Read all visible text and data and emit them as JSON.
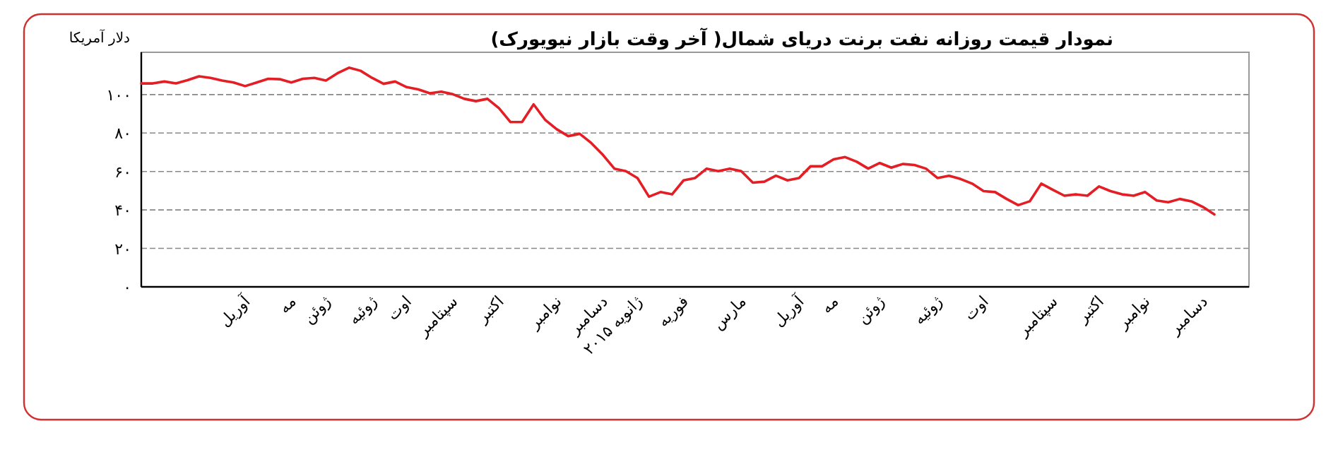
{
  "chart_data": {
    "type": "line",
    "title": "نمودار قیمت روزانه نفت برنت دریای شمال( آخر وقت بازار نیویورک)",
    "ylabel": "دلار آمریکا",
    "categories": [
      null,
      null,
      null,
      null,
      null,
      null,
      null,
      null,
      null,
      "آوریل",
      null,
      null,
      null,
      "مه",
      null,
      null,
      "ژوئن",
      null,
      null,
      null,
      "ژوئیه",
      null,
      null,
      "اوت",
      null,
      null,
      null,
      "سپتامبر",
      null,
      null,
      null,
      "اکتبر",
      null,
      null,
      null,
      null,
      "نوامبر",
      null,
      null,
      null,
      "دسامبر",
      null,
      null,
      "ژانویه ۲۰۱۵",
      null,
      null,
      null,
      "فوریه",
      null,
      null,
      null,
      null,
      "مارس",
      null,
      null,
      null,
      null,
      "آوریل",
      null,
      null,
      "مه",
      null,
      null,
      null,
      "ژوئن",
      null,
      null,
      null,
      null,
      "ژوئیه",
      null,
      null,
      null,
      "اوت",
      null,
      null,
      null,
      null,
      null,
      "سپتامبر",
      null,
      null,
      null,
      "اکتبر",
      null,
      null,
      null,
      "نوامبر",
      null,
      null,
      null,
      null,
      "دسامبر",
      null
    ],
    "series": [
      {
        "color": "#e31e24",
        "values": [
          105.8,
          105.8,
          106.8,
          105.8,
          107.5,
          109.5,
          108.7,
          107.3,
          106.3,
          104.4,
          106.3,
          108.2,
          108,
          106.3,
          108.2,
          108.7,
          107.3,
          111.1,
          114,
          112.4,
          108.7,
          105.6,
          106.8,
          103.9,
          102.7,
          100.7,
          101.5,
          100.2,
          97.8,
          96.6,
          97.8,
          92.9,
          85.7,
          85.7,
          94.9,
          86.9,
          82,
          78.4,
          79.6,
          74.8,
          68.7,
          61.5,
          60.2,
          56.6,
          46.9,
          49.3,
          48.1,
          55.4,
          56.6,
          61.5,
          60.2,
          61.5,
          60.2,
          54.2,
          54.7,
          57.8,
          55.4,
          56.6,
          62.7,
          62.7,
          66.3,
          67.5,
          65.1,
          61.5,
          64.4,
          62,
          63.9,
          63.4,
          61.5,
          56.6,
          57.8,
          56.1,
          53.7,
          49.8,
          49.3,
          45.7,
          42.5,
          44.5,
          53.7,
          50.5,
          47.4,
          48.1,
          47.4,
          52.2,
          49.8,
          48.1,
          47.4,
          49.3,
          44.9,
          44,
          45.7,
          44.5,
          41.6,
          37.7
        ]
      }
    ],
    "ylim": [
      0,
      122
    ],
    "yticks": [
      {
        "value": 0,
        "label": "۰"
      },
      {
        "value": 20,
        "label": "۲۰"
      },
      {
        "value": 40,
        "label": "۴۰"
      },
      {
        "value": 60,
        "label": "۶۰"
      },
      {
        "value": 80,
        "label": "۸۰"
      },
      {
        "value": 100,
        "label": "۱۰۰"
      }
    ],
    "grid": "y"
  }
}
